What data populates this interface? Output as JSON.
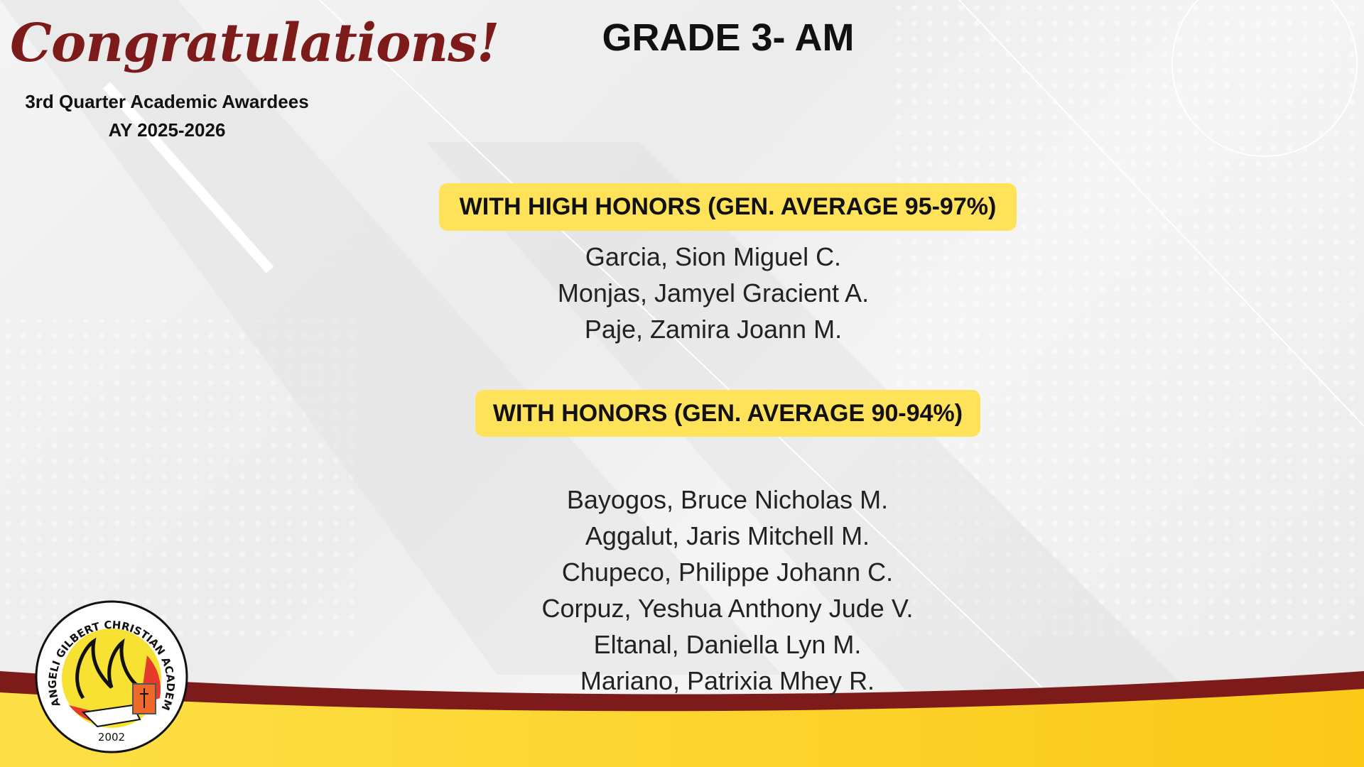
{
  "header": {
    "congrats": "Congratulations!",
    "subtitle": "3rd Quarter Academic Awardees",
    "year": "AY 2025-2026",
    "grade": "GRADE 3- AM"
  },
  "sections": [
    {
      "title": "WITH HIGH HONORS (GEN. AVERAGE 95-97%)",
      "names": [
        "Garcia, Sion Miguel C.",
        "Monjas, Jamyel Gracient A.",
        "Paje, Zamira Joann M."
      ]
    },
    {
      "title": "WITH HONORS (GEN. AVERAGE 90-94%)",
      "names": [
        "Bayogos, Bruce Nicholas M.",
        "Aggalut, Jaris Mitchell M.",
        "Chupeco, Philippe Johann C.",
        "Corpuz, Yeshua Anthony Jude V.",
        "Eltanal, Daniella Lyn M.",
        "Mariano, Patrixia Mhey R."
      ]
    }
  ],
  "logo": {
    "ring_text": "ANGELI GILBERT CHRISTIAN ACADEMY",
    "year": "2002"
  },
  "colors": {
    "maroon": "#7d1a1a",
    "yellow": "#fcd21e",
    "banner": "#fde25a"
  }
}
